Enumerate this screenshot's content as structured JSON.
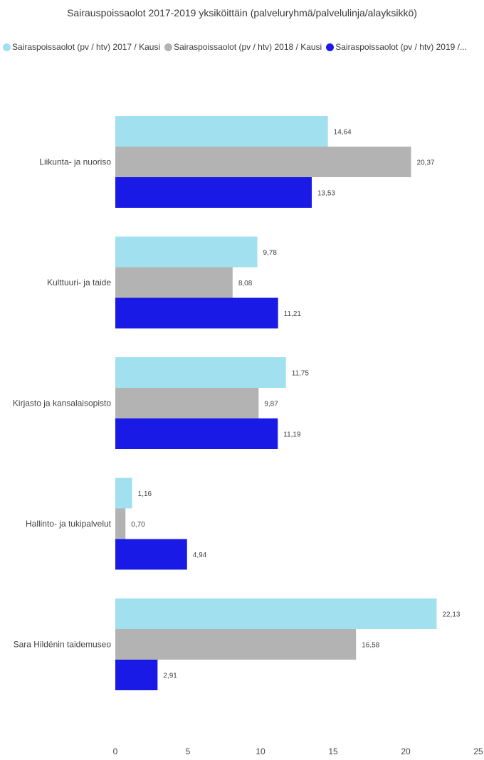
{
  "chart_data": {
    "type": "bar",
    "orientation": "horizontal",
    "title": "Sairauspoissaolot 2017-2019 yksiköittäin (palveluryhmä/palvelulinja/alayksikkö)",
    "categories": [
      "Liikunta- ja nuoriso",
      "Kulttuuri- ja taide",
      "Kirjasto ja kansalaisopisto",
      "Hallinto- ja tukipalvelut",
      "Sara Hildénin taidemuseo"
    ],
    "series": [
      {
        "name": "Sairaspoissaolot (pv / htv) 2017 / Kausi",
        "color": "#a1e0ee",
        "values": [
          14.64,
          9.78,
          11.75,
          1.16,
          22.13
        ],
        "labels": [
          "14,64",
          "9,78",
          "11,75",
          "1,16",
          "22,13"
        ]
      },
      {
        "name": "Sairaspoissaolot (pv / htv) 2018 / Kausi",
        "color": "#b3b3b3",
        "values": [
          20.37,
          8.08,
          9.87,
          0.7,
          16.58
        ],
        "labels": [
          "20,37",
          "8,08",
          "9,87",
          "0,70",
          "16,58"
        ]
      },
      {
        "name": "Sairaspoissaolot (pv / htv) 2019 /...",
        "color": "#1a1ae6",
        "values": [
          13.53,
          11.21,
          11.19,
          4.94,
          2.91
        ],
        "labels": [
          "13,53",
          "11,21",
          "11,19",
          "4,94",
          "2,91"
        ]
      }
    ],
    "xlim": [
      0,
      25
    ],
    "xticks": [
      0,
      5,
      10,
      15,
      20,
      25
    ],
    "xtick_labels": [
      "0",
      "5",
      "10",
      "15",
      "20",
      "25"
    ],
    "grid": false,
    "legend_position": "top-left"
  }
}
